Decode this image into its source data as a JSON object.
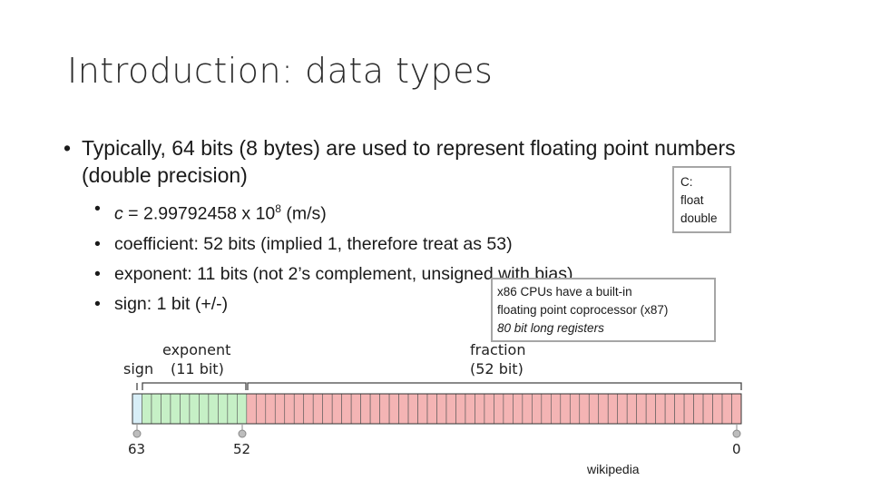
{
  "title": "Introduction: data types",
  "bullet_main": "Typically, 64 bits (8 bytes) are used to represent floating point numbers (double precision)",
  "sub_bullets": {
    "c_var": "c",
    "c_eq": " = 2.99792458 x 10",
    "c_exp": "8",
    "c_unit": " (m/s)",
    "coefficient": "coefficient: 52 bits (implied 1, therefore treat as 53)",
    "exponent": "exponent: 11 bits (not 2’s complement, unsigned with bias)",
    "sign": "sign: 1 bit (+/-)"
  },
  "note_c": {
    "line1": "C:",
    "line2": "float",
    "line3": "double"
  },
  "note_x86": {
    "line1": "x86 CPUs have a built-in",
    "line2": "floating point coprocessor (x87)",
    "line3": "80 bit long registers"
  },
  "diagram": {
    "sign_label": "sign",
    "exponent_label": "exponent",
    "exponent_bits": "(11 bit)",
    "fraction_label": "fraction",
    "fraction_bits": "(52 bit)",
    "marker_63": "63",
    "marker_52": "52",
    "marker_0": "0",
    "sign_count": 1,
    "exponent_count": 11,
    "fraction_count": 52,
    "colors": {
      "sign": "#d7eef7",
      "exponent": "#c6f0c6",
      "fraction": "#f4b4b4",
      "cell_border": "#555555"
    }
  },
  "credit": "wikipedia"
}
